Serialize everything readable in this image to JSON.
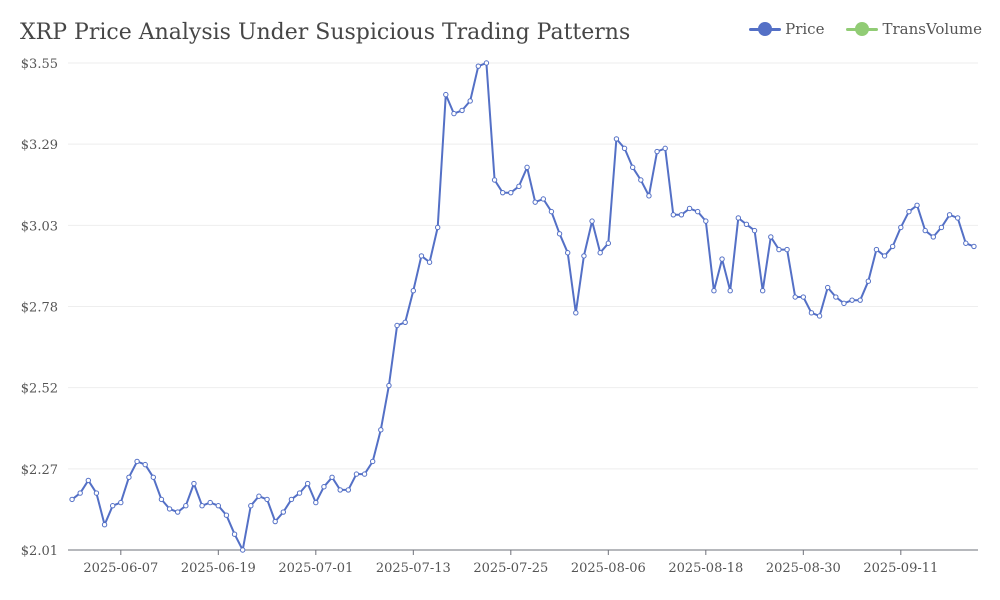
{
  "chart_data": {
    "type": "line",
    "title": "XRP Price Analysis Under Suspicious Trading Patterns",
    "xlabel": "",
    "ylabel": "",
    "y_tick_labels": [
      "$2.01",
      "$2.27",
      "$2.52",
      "$2.78",
      "$3.03",
      "$3.29",
      "$3.55"
    ],
    "ylim": [
      2.01,
      3.55
    ],
    "x_tick_labels": [
      "2025-06-07",
      "2025-06-19",
      "2025-07-01",
      "2025-07-13",
      "2025-07-25",
      "2025-08-06",
      "2025-08-18",
      "2025-08-30",
      "2025-09-11"
    ],
    "x_start": "2025-06-01",
    "grid": true,
    "legend_position": "top-right",
    "series": [
      {
        "name": "Price",
        "color": "#5470c6",
        "values": [
          2.17,
          2.19,
          2.23,
          2.19,
          2.09,
          2.15,
          2.16,
          2.24,
          2.29,
          2.28,
          2.24,
          2.17,
          2.14,
          2.13,
          2.15,
          2.22,
          2.15,
          2.16,
          2.15,
          2.12,
          2.06,
          2.01,
          2.15,
          2.18,
          2.17,
          2.1,
          2.13,
          2.17,
          2.19,
          2.22,
          2.16,
          2.21,
          2.24,
          2.2,
          2.2,
          2.25,
          2.25,
          2.29,
          2.39,
          2.53,
          2.72,
          2.73,
          2.83,
          2.94,
          2.92,
          3.03,
          3.45,
          3.39,
          3.4,
          3.43,
          3.54,
          3.55,
          3.18,
          3.14,
          3.14,
          3.16,
          3.22,
          3.11,
          3.12,
          3.08,
          3.01,
          2.95,
          2.76,
          2.94,
          3.05,
          2.95,
          2.98,
          3.31,
          3.28,
          3.22,
          3.18,
          3.13,
          3.27,
          3.28,
          3.07,
          3.07,
          3.09,
          3.08,
          3.05,
          2.83,
          2.93,
          2.83,
          3.06,
          3.04,
          3.02,
          2.83,
          3.0,
          2.96,
          2.96,
          2.81,
          2.81,
          2.76,
          2.75,
          2.84,
          2.81,
          2.79,
          2.8,
          2.8,
          2.86,
          2.96,
          2.94,
          2.97,
          3.03,
          3.08,
          3.1,
          3.02,
          3.0,
          3.03,
          3.07,
          3.06,
          2.98,
          2.97
        ]
      },
      {
        "name": "TransVolume",
        "color": "#91cc75",
        "values": []
      }
    ]
  }
}
